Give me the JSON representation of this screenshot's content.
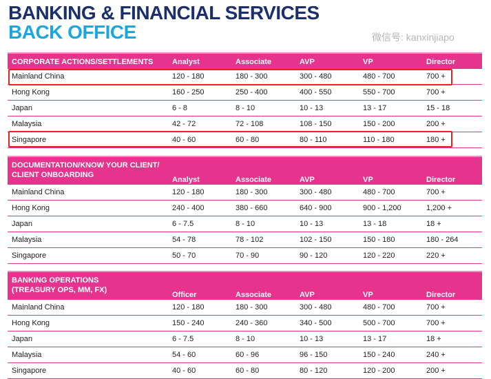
{
  "title": "BANKING & FINANCIAL SERVICES",
  "subtitle": "BACK OFFICE",
  "sections": [
    {
      "header": [
        "CORPORATE ACTIONS/SETTLEMENTS",
        "Analyst",
        "Associate",
        "AVP",
        "VP",
        "Director"
      ],
      "rows": [
        [
          "Mainland China",
          "120 - 180",
          "180 - 300",
          "300 - 480",
          "480 - 700",
          "700 +"
        ],
        [
          "Hong Kong",
          "160 - 250",
          "250 - 400",
          "400 - 550",
          "550 - 700",
          "700 +"
        ],
        [
          "Japan",
          "6 - 8",
          "8 - 10",
          "10 - 13",
          "13 - 17",
          "15 - 18"
        ],
        [
          "Malaysia",
          "42 - 72",
          "72 - 108",
          "108 - 150",
          "150 - 200",
          "200 +"
        ],
        [
          "Singapore",
          "40 - 60",
          "60 - 80",
          "80 - 110",
          "110 - 180",
          "180 +"
        ]
      ]
    },
    {
      "header": [
        "DOCUMENTATION/KNOW YOUR CLIENT/\nCLIENT ONBOARDING",
        "Analyst",
        "Associate",
        "AVP",
        "VP",
        "Director"
      ],
      "rows": [
        [
          "Mainland China",
          "120 - 180",
          "180 - 300",
          "300 - 480",
          "480 - 700",
          "700 +"
        ],
        [
          "Hong Kong",
          "240 - 400",
          "380 - 660",
          "640 - 900",
          "900 - 1,200",
          "1,200 +"
        ],
        [
          "Japan",
          "6 - 7.5",
          "8 - 10",
          "10 - 13",
          "13 - 18",
          "18 +"
        ],
        [
          "Malaysia",
          "54 - 78",
          "78 - 102",
          "102 - 150",
          "150 - 180",
          "180 - 264"
        ],
        [
          "Singapore",
          "50 - 70",
          "70 - 90",
          "90 - 120",
          "120 - 220",
          "220 +"
        ]
      ]
    },
    {
      "header": [
        "BANKING OPERATIONS\n(TREASURY OPS, MM, FX)",
        "Officer",
        "Associate",
        "AVP",
        "VP",
        "Director"
      ],
      "rows": [
        [
          "Mainland China",
          "120 - 180",
          "180 - 300",
          "300 - 480",
          "480 - 700",
          "700 +"
        ],
        [
          "Hong Kong",
          "150 - 240",
          "240 - 360",
          "340 - 500",
          "500 - 700",
          "700 +"
        ],
        [
          "Japan",
          "6 - 7.5",
          "8 - 10",
          "10 - 13",
          "13 - 17",
          "18 +"
        ],
        [
          "Malaysia",
          "54 - 60",
          "60 - 96",
          "96 - 150",
          "150 - 240",
          "240 +"
        ],
        [
          "Singapore",
          "40 - 60",
          "60 - 80",
          "80 - 120",
          "120 - 200",
          "200 +"
        ]
      ]
    }
  ],
  "watermark": "微信号: kanxinjiapo"
}
